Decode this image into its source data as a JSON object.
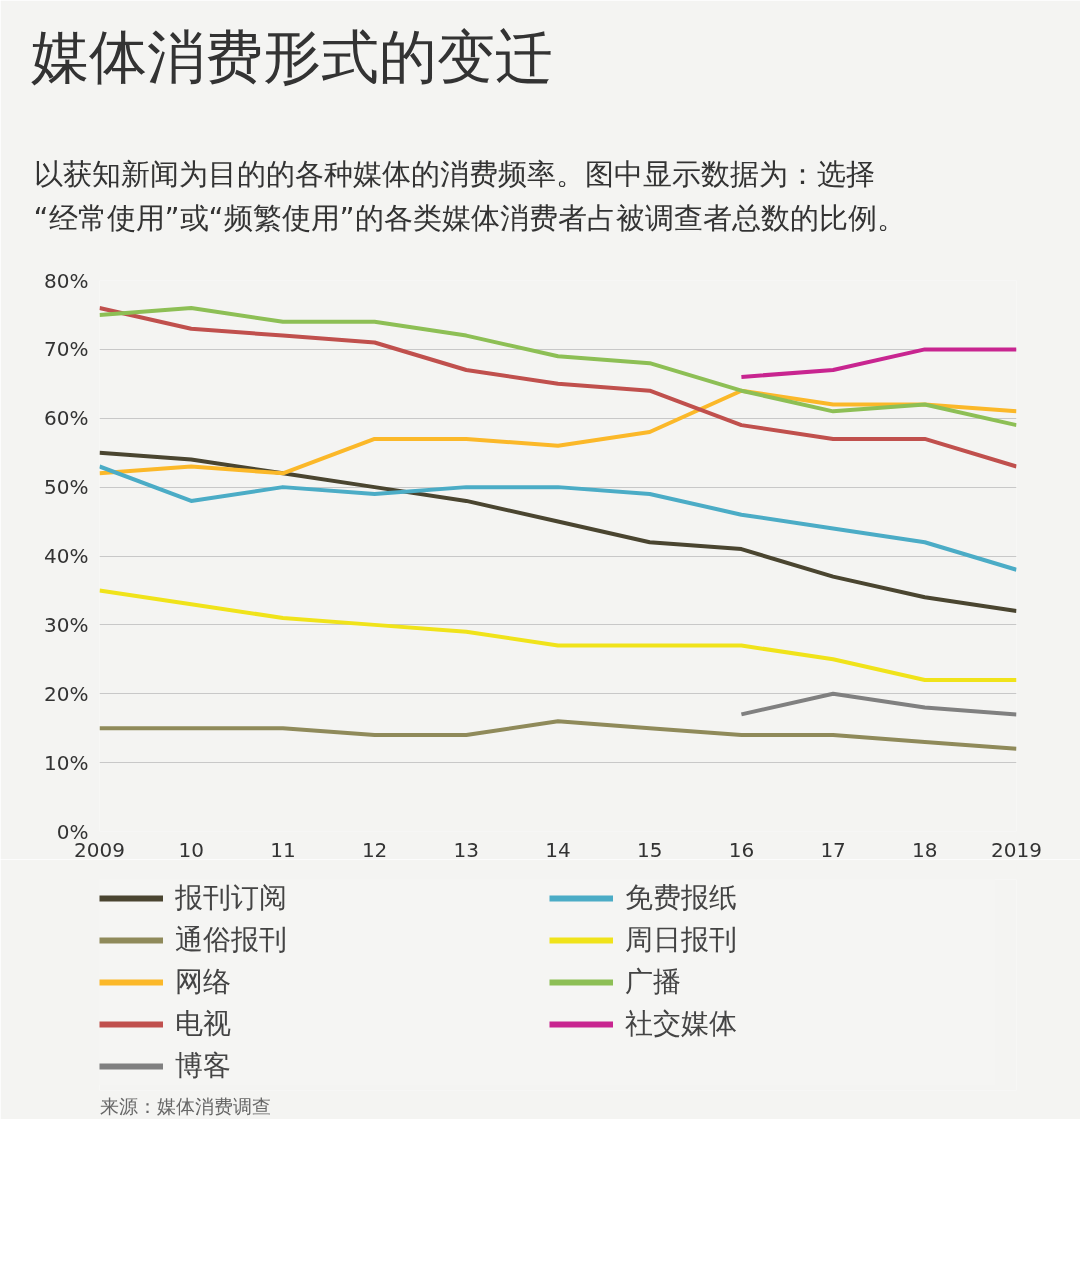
{
  "chart_data": {
    "type": "line",
    "title": "媒体消费形式的变迁",
    "subtitle": "以获知新闻为目的的各种媒体的消费频率。图中显示数据为：选择“经常使用”或“频繁使用”的各类媒体消费者占被调查者总数的比例。",
    "x": [
      2009,
      2010,
      2011,
      2012,
      2013,
      2014,
      2015,
      2016,
      2017,
      2018,
      2019
    ],
    "xlim": [
      2009,
      2019
    ],
    "xticks": [
      {
        "value": 2009,
        "label": "2009"
      },
      {
        "value": 2010,
        "label": "10"
      },
      {
        "value": 2011,
        "label": "11"
      },
      {
        "value": 2012,
        "label": "12"
      },
      {
        "value": 2013,
        "label": "13"
      },
      {
        "value": 2014,
        "label": "14"
      },
      {
        "value": 2015,
        "label": "15"
      },
      {
        "value": 2016,
        "label": "16"
      },
      {
        "value": 2017,
        "label": "17"
      },
      {
        "value": 2018,
        "label": "18"
      },
      {
        "value": 2019,
        "label": "2019"
      }
    ],
    "ylim": [
      0,
      80
    ],
    "yticks": [
      {
        "value": 0,
        "label": "0%"
      },
      {
        "value": 10,
        "label": "10%"
      },
      {
        "value": 20,
        "label": "20%"
      },
      {
        "value": 30,
        "label": "30%"
      },
      {
        "value": 40,
        "label": "40%"
      },
      {
        "value": 50,
        "label": "50%"
      },
      {
        "value": 60,
        "label": "60%"
      },
      {
        "value": 70,
        "label": "70%"
      },
      {
        "value": 80,
        "label": "80%"
      }
    ],
    "grid": "y",
    "legend": "bottom",
    "marker": "none",
    "line_style": "solid",
    "series": [
      {
        "name": "报刊订阅",
        "color": "#4a4530",
        "values": [
          55,
          54,
          52,
          50,
          48,
          45,
          42,
          41,
          37,
          34,
          32
        ]
      },
      {
        "name": "通俗报刊",
        "color": "#8f8a5a",
        "values": [
          15,
          15,
          15,
          14,
          14,
          16,
          15,
          14,
          14,
          13,
          12
        ]
      },
      {
        "name": "网络",
        "color": "#fbb829",
        "values": [
          52,
          53,
          52,
          57,
          57,
          56,
          58,
          64,
          62,
          62,
          61
        ]
      },
      {
        "name": "电视",
        "color": "#c0504d",
        "values": [
          76,
          73,
          72,
          71,
          67,
          65,
          64,
          59,
          57,
          57,
          53
        ]
      },
      {
        "name": "博客",
        "color": "#808080",
        "values": [
          null,
          null,
          null,
          null,
          null,
          null,
          null,
          17,
          20,
          18,
          17
        ]
      },
      {
        "name": "免费报纸",
        "color": "#4bacc6",
        "values": [
          53,
          48,
          50,
          49,
          50,
          50,
          49,
          46,
          44,
          42,
          38
        ]
      },
      {
        "name": "周日报刊",
        "color": "#f0e31a",
        "values": [
          35,
          33,
          31,
          30,
          29,
          27,
          27,
          27,
          25,
          22,
          22
        ]
      },
      {
        "name": "广播",
        "color": "#8dbf55",
        "values": [
          75,
          76,
          74,
          74,
          72,
          69,
          68,
          64,
          61,
          62,
          59
        ]
      },
      {
        "name": "社交媒体",
        "color": "#c82590",
        "values": [
          null,
          null,
          null,
          null,
          null,
          null,
          null,
          66,
          67,
          70,
          70
        ]
      }
    ],
    "annotations": [
      "来源：媒体消费调查"
    ]
  }
}
